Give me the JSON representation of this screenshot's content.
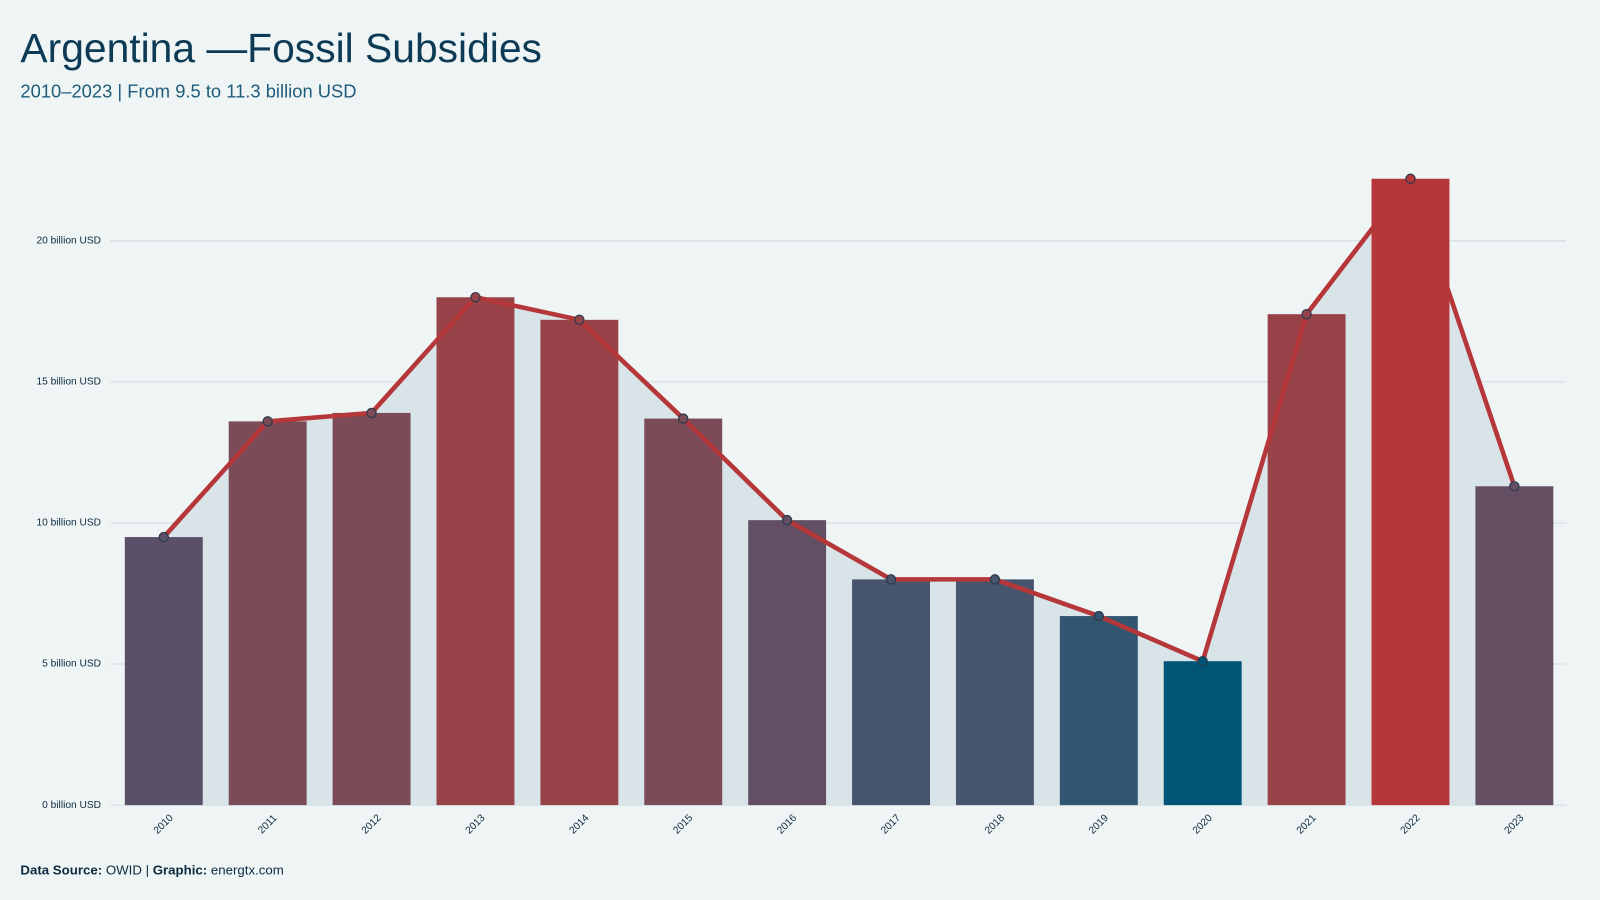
{
  "chart_data": {
    "type": "bar",
    "title": "Argentina —Fossil Subsidies",
    "subtitle": "2010–2023 | From 9.5 to 11.3 billion USD",
    "categories": [
      "2010",
      "2011",
      "2012",
      "2013",
      "2014",
      "2015",
      "2016",
      "2017",
      "2018",
      "2019",
      "2020",
      "2021",
      "2022",
      "2023"
    ],
    "values": [
      9.5,
      13.6,
      13.9,
      18.0,
      17.2,
      13.7,
      10.1,
      8.0,
      8.0,
      6.7,
      5.1,
      17.4,
      22.2,
      11.3
    ],
    "colors": [
      "#5a5068",
      "#7b4b58",
      "#7b4b58",
      "#98434a",
      "#98434a",
      "#7b4b58",
      "#624f64",
      "#47546e",
      "#47546e",
      "#32566f",
      "#005476",
      "#98434a",
      "#b5373a",
      "#654f63"
    ],
    "line_color": "#b5373a",
    "area_color": "#d8e4e8",
    "ylim": [
      0,
      24
    ],
    "yticks": [
      {
        "value": 0,
        "label": "0 billion USD"
      },
      {
        "value": 5,
        "label": "5 billion USD"
      },
      {
        "value": 10,
        "label": "10 billion USD"
      },
      {
        "value": 15,
        "label": "15 billion USD"
      },
      {
        "value": 20,
        "label": "20 billion USD"
      }
    ],
    "grid": true,
    "footer": [
      "Data Source:",
      "OWID |",
      "Graphic:",
      "energtx.com"
    ]
  }
}
